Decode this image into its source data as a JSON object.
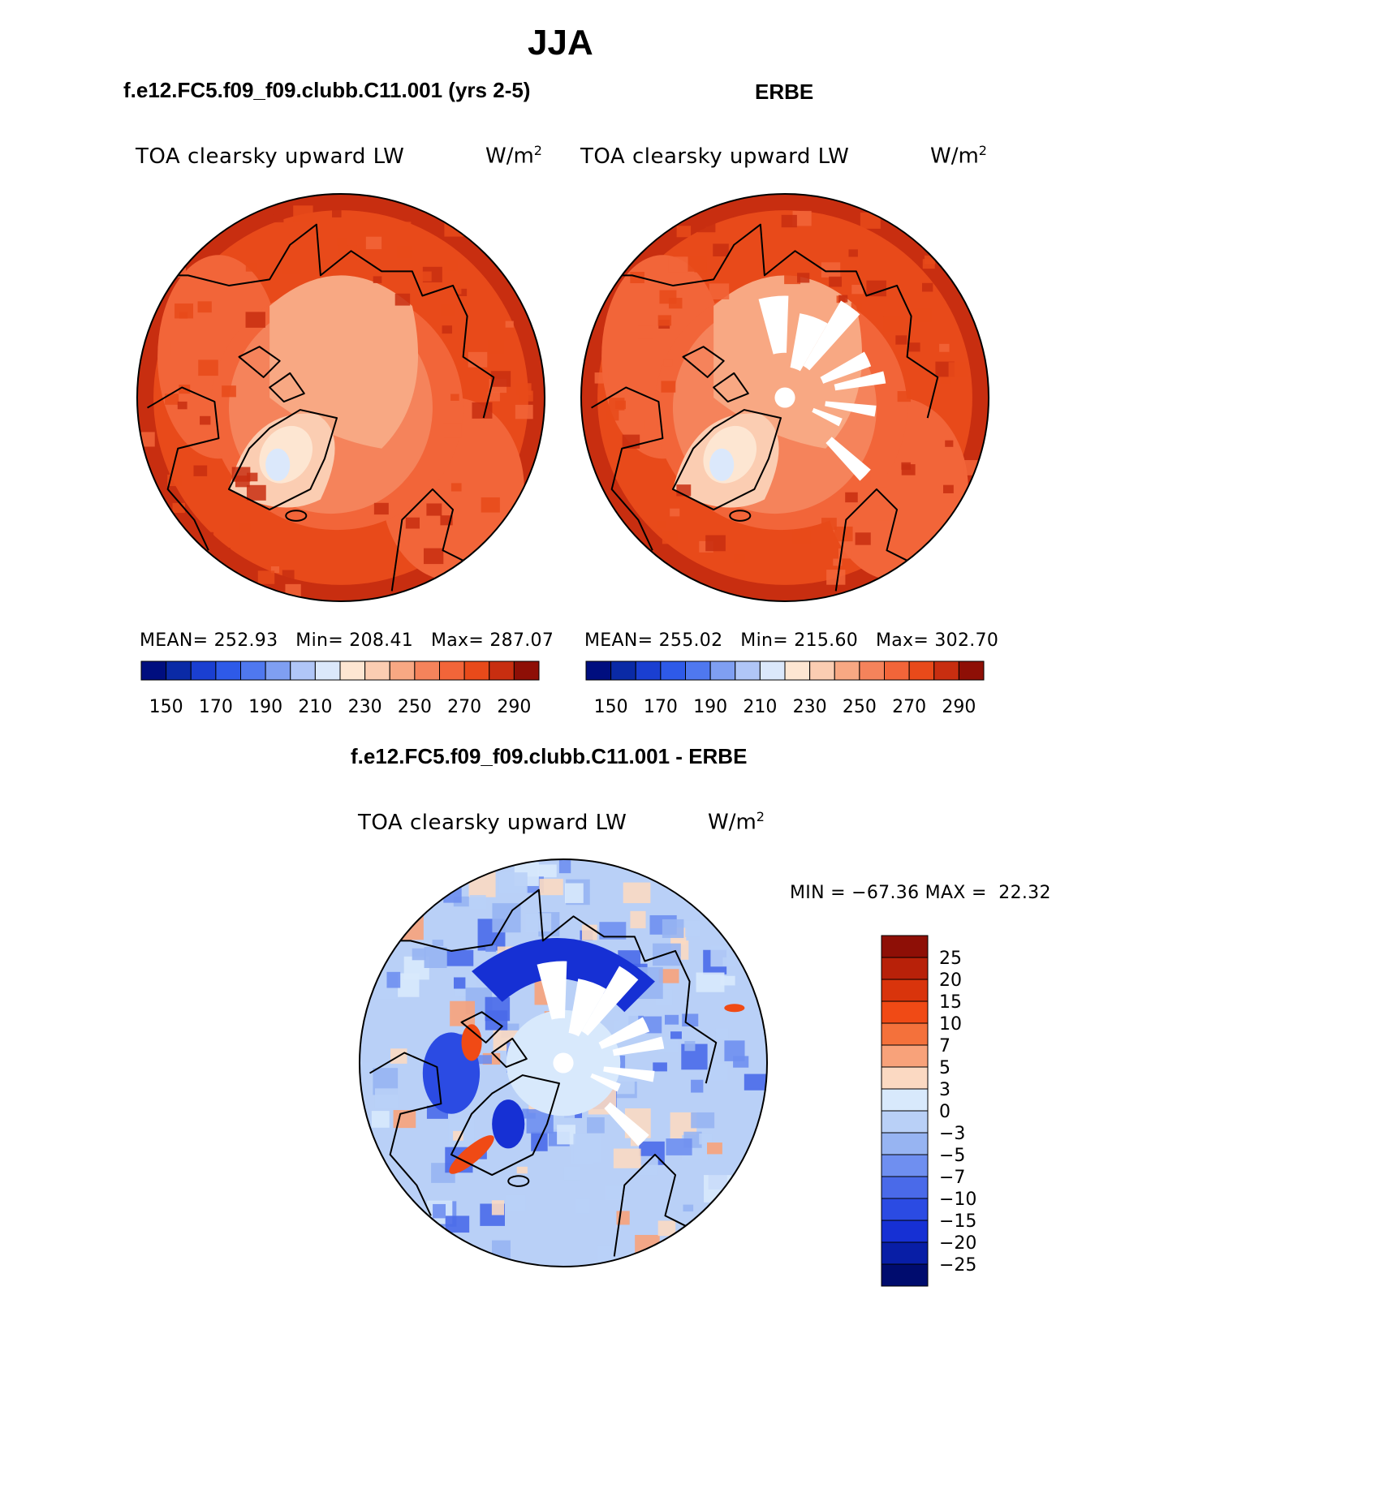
{
  "figure": {
    "season": "JJA",
    "model_title": "f.e12.FC5.f09_f09.clubb.C11.001 (yrs 2-5)",
    "obs_title": "ERBE",
    "diff_title": "f.e12.FC5.f09_f09.clubb.C11.001 - ERBE"
  },
  "chart_data": [
    {
      "type": "heatmap",
      "projection": "north-polar-stereographic",
      "title": "f.e12.FC5.f09_f09.clubb.C11.001 (yrs 2-5)",
      "variable": "TOA clearsky upward LW",
      "units": "W/m",
      "units_exp": "2",
      "stats": [
        {
          "label": "MEAN=",
          "value": "252.93"
        },
        {
          "label": "Min=",
          "value": "208.41"
        },
        {
          "label": "Max=",
          "value": "287.07"
        }
      ],
      "colorbar_levels": [
        "150",
        "170",
        "190",
        "210",
        "230",
        "250",
        "270",
        "290"
      ],
      "colorbar_colors": [
        "#000e7f",
        "#0a2aa6",
        "#1a3fd1",
        "#2e5ae8",
        "#4f78ef",
        "#7f9ff2",
        "#b0c6f7",
        "#dbe8fb",
        "#fde6d2",
        "#fbcdb2",
        "#f8a883",
        "#f5835b",
        "#f26539",
        "#e84a1a",
        "#c82e10",
        "#8e0f06"
      ],
      "field_levels": [
        {
          "region": "ocean-far",
          "value": 280
        },
        {
          "region": "ocean",
          "value": 270
        },
        {
          "region": "land",
          "value": 260
        },
        {
          "region": "arctic",
          "value": 240
        },
        {
          "region": "greenland-edge",
          "value": 230
        },
        {
          "region": "greenland-core",
          "value": 215
        }
      ]
    },
    {
      "type": "heatmap",
      "projection": "north-polar-stereographic",
      "title": "ERBE",
      "variable": "TOA clearsky upward LW",
      "units": "W/m",
      "units_exp": "2",
      "stats": [
        {
          "label": "MEAN=",
          "value": "255.02"
        },
        {
          "label": "Min=",
          "value": "215.60"
        },
        {
          "label": "Max=",
          "value": "302.70"
        }
      ],
      "colorbar_levels": [
        "150",
        "170",
        "190",
        "210",
        "230",
        "250",
        "270",
        "290"
      ],
      "colorbar_colors": [
        "#000e7f",
        "#0a2aa6",
        "#1a3fd1",
        "#2e5ae8",
        "#4f78ef",
        "#7f9ff2",
        "#b0c6f7",
        "#dbe8fb",
        "#fde6d2",
        "#fbcdb2",
        "#f8a883",
        "#f5835b",
        "#f26539",
        "#e84a1a",
        "#c82e10",
        "#8e0f06"
      ],
      "missing_data": "white wedges near pole"
    },
    {
      "type": "heatmap",
      "projection": "north-polar-stereographic",
      "title": "f.e12.FC5.f09_f09.clubb.C11.001 - ERBE",
      "variable": "TOA clearsky upward LW",
      "units": "W/m",
      "units_exp": "2",
      "min_label": "MIN =",
      "min_value": "−67.36",
      "max_label": "MAX =",
      "max_value": "22.32",
      "colorbar_levels": [
        "25",
        "20",
        "15",
        "10",
        "7",
        "5",
        "3",
        "0",
        "−3",
        "−5",
        "−7",
        "−10",
        "−15",
        "−20",
        "−25"
      ],
      "colorbar_colors": [
        "#8e0f06",
        "#b82109",
        "#d9340c",
        "#f04a15",
        "#f4713b",
        "#f8a27a",
        "#fbd9c2",
        "#d8e9fc",
        "#b9d0f7",
        "#97b4f2",
        "#6f8ff0",
        "#4a6ae9",
        "#2b4be3",
        "#1630d4",
        "#081ea6",
        "#000c6e"
      ],
      "field_levels": [
        {
          "region": "background",
          "value": -2
        },
        {
          "region": "warm-patches",
          "value": 4
        },
        {
          "region": "cold-patches",
          "value": -8
        },
        {
          "region": "arctic-rim",
          "value": -15
        }
      ]
    }
  ]
}
